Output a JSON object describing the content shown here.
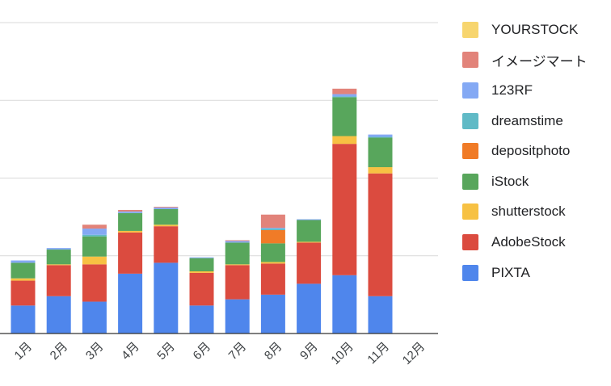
{
  "chart_data": {
    "type": "bar",
    "stacked": true,
    "categories": [
      "1月",
      "2月",
      "3月",
      "4月",
      "5月",
      "6月",
      "7月",
      "8月",
      "9月",
      "10月",
      "11月",
      "12月"
    ],
    "ylim": [
      0,
      400
    ],
    "grid": true,
    "legend_position": "right",
    "series": [
      {
        "name": "PIXTA",
        "color": "#4f86ec",
        "values": [
          36,
          48,
          41,
          77,
          91,
          36,
          44,
          50,
          64,
          75,
          48,
          0
        ]
      },
      {
        "name": "AdobeStock",
        "color": "#db4b3f",
        "values": [
          32,
          40,
          48,
          53,
          47,
          42,
          44,
          40,
          53,
          169,
          158,
          0
        ]
      },
      {
        "name": "shutterstock",
        "color": "#f7c143",
        "values": [
          3,
          1,
          10,
          2,
          2,
          2,
          1,
          2,
          1,
          10,
          8,
          0
        ]
      },
      {
        "name": "iStock",
        "color": "#58a65c",
        "values": [
          20,
          19,
          26,
          23,
          20,
          17,
          28,
          24,
          28,
          50,
          38,
          0
        ]
      },
      {
        "name": "depositphoto",
        "color": "#f07b27",
        "values": [
          0,
          0,
          0,
          0,
          0,
          0,
          0,
          17,
          0,
          0,
          0,
          0
        ]
      },
      {
        "name": "dreamstime",
        "color": "#60bac6",
        "values": [
          0,
          0,
          2,
          0,
          0,
          0,
          0,
          2,
          0,
          1,
          1,
          0
        ]
      },
      {
        "name": "123RF",
        "color": "#84a9f4",
        "values": [
          3,
          2,
          8,
          2,
          2,
          1,
          2,
          1,
          1,
          3,
          3,
          0
        ]
      },
      {
        "name": "イメージマート",
        "color": "#e2837a",
        "values": [
          0,
          0,
          5,
          2,
          1,
          0,
          1,
          17,
          0,
          7,
          0,
          0
        ]
      },
      {
        "name": "YOURSTOCK",
        "color": "#f7d56e",
        "values": [
          0,
          0,
          0,
          0,
          0,
          0,
          0,
          0,
          0,
          0,
          0,
          0
        ]
      }
    ]
  }
}
